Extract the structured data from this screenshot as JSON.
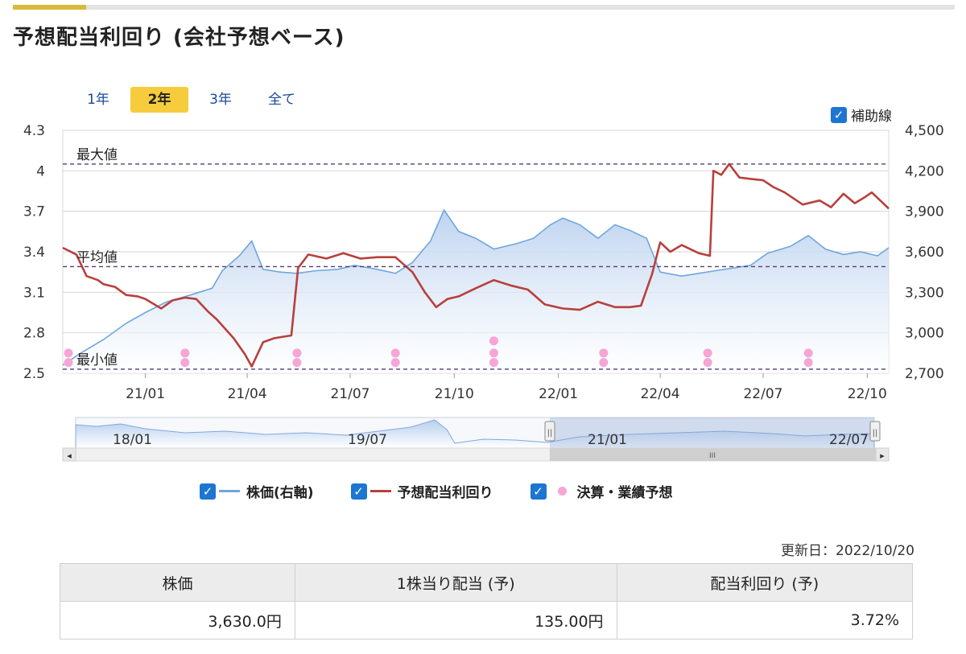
{
  "title": "予想配当利回り (会社予想ベース)",
  "range_tabs": [
    {
      "label": "1年",
      "active": false
    },
    {
      "label": "2年",
      "active": true
    },
    {
      "label": "3年",
      "active": false
    },
    {
      "label": "全て",
      "active": false
    }
  ],
  "aux_lines": {
    "label": "補助線",
    "checked": true
  },
  "colors": {
    "price": "#6ea6de",
    "price_fill": "#c9dbf2",
    "yield": "#b8403c",
    "events": "#f7a5d5",
    "refline": "#5b3a78",
    "tab_active": "#f6cc3c",
    "checkbox": "#1d76d2"
  },
  "chart_data": {
    "type": "line",
    "left_axis": {
      "ylim": [
        2.5,
        4.3
      ],
      "ticks": [
        "2.5",
        "2.8",
        "3.1",
        "3.4",
        "3.7",
        "4",
        "4.3"
      ]
    },
    "right_axis": {
      "ylim": [
        2700,
        4500
      ],
      "ticks": [
        "2,700",
        "3,000",
        "3,300",
        "3,600",
        "3,900",
        "4,200",
        "4,500"
      ]
    },
    "x_ticks": [
      "21/01",
      "21/04",
      "21/07",
      "21/10",
      "22/01",
      "22/04",
      "22/07",
      "22/10"
    ],
    "x_range": [
      "2020-10-20",
      "2022-10-20"
    ],
    "reference_lines": [
      {
        "label": "最大値",
        "value": 4.05
      },
      {
        "label": "平均値",
        "value": 3.29
      },
      {
        "label": "最小値",
        "value": 2.53
      }
    ],
    "series": [
      {
        "name": "株価(右軸)",
        "axis": "right",
        "points": [
          [
            "2020-10-20",
            2760
          ],
          [
            "2020-11-05",
            2850
          ],
          [
            "2020-11-25",
            2950
          ],
          [
            "2020-12-15",
            3070
          ],
          [
            "2021-01-01",
            3150
          ],
          [
            "2021-01-20",
            3230
          ],
          [
            "2021-02-10",
            3280
          ],
          [
            "2021-03-01",
            3330
          ],
          [
            "2021-03-10",
            3460
          ],
          [
            "2021-03-25",
            3570
          ],
          [
            "2021-04-05",
            3680
          ],
          [
            "2021-04-15",
            3470
          ],
          [
            "2021-04-30",
            3450
          ],
          [
            "2021-05-15",
            3440
          ],
          [
            "2021-06-01",
            3460
          ],
          [
            "2021-06-20",
            3470
          ],
          [
            "2021-07-05",
            3500
          ],
          [
            "2021-07-25",
            3470
          ],
          [
            "2021-08-10",
            3440
          ],
          [
            "2021-08-25",
            3520
          ],
          [
            "2021-09-10",
            3680
          ],
          [
            "2021-09-22",
            3910
          ],
          [
            "2021-10-05",
            3750
          ],
          [
            "2021-10-20",
            3700
          ],
          [
            "2021-11-05",
            3620
          ],
          [
            "2021-11-25",
            3660
          ],
          [
            "2021-12-10",
            3700
          ],
          [
            "2021-12-25",
            3800
          ],
          [
            "2022-01-05",
            3850
          ],
          [
            "2022-01-20",
            3800
          ],
          [
            "2022-02-05",
            3700
          ],
          [
            "2022-02-20",
            3800
          ],
          [
            "2022-03-05",
            3760
          ],
          [
            "2022-03-20",
            3700
          ],
          [
            "2022-04-01",
            3450
          ],
          [
            "2022-04-20",
            3420
          ],
          [
            "2022-05-05",
            3440
          ],
          [
            "2022-05-20",
            3460
          ],
          [
            "2022-06-05",
            3480
          ],
          [
            "2022-06-20",
            3500
          ],
          [
            "2022-07-05",
            3590
          ],
          [
            "2022-07-25",
            3640
          ],
          [
            "2022-08-10",
            3720
          ],
          [
            "2022-08-25",
            3620
          ],
          [
            "2022-09-10",
            3580
          ],
          [
            "2022-09-25",
            3600
          ],
          [
            "2022-10-10",
            3570
          ],
          [
            "2022-10-20",
            3630
          ]
        ]
      },
      {
        "name": "予想配当利回り",
        "axis": "left",
        "points": [
          [
            "2020-10-20",
            3.43
          ],
          [
            "2020-11-01",
            3.38
          ],
          [
            "2020-11-10",
            3.22
          ],
          [
            "2020-11-20",
            3.19
          ],
          [
            "2020-11-25",
            3.16
          ],
          [
            "2020-12-05",
            3.14
          ],
          [
            "2020-12-15",
            3.08
          ],
          [
            "2020-12-25",
            3.07
          ],
          [
            "2021-01-01",
            3.05
          ],
          [
            "2021-01-15",
            2.98
          ],
          [
            "2021-01-25",
            3.04
          ],
          [
            "2021-02-05",
            3.06
          ],
          [
            "2021-02-15",
            3.05
          ],
          [
            "2021-02-25",
            2.96
          ],
          [
            "2021-03-05",
            2.9
          ],
          [
            "2021-03-20",
            2.76
          ],
          [
            "2021-03-30",
            2.64
          ],
          [
            "2021-04-05",
            2.55
          ],
          [
            "2021-04-15",
            2.73
          ],
          [
            "2021-04-25",
            2.76
          ],
          [
            "2021-05-10",
            2.78
          ],
          [
            "2021-05-16",
            3.28
          ],
          [
            "2021-05-25",
            3.38
          ],
          [
            "2021-06-10",
            3.35
          ],
          [
            "2021-06-25",
            3.39
          ],
          [
            "2021-07-10",
            3.35
          ],
          [
            "2021-07-25",
            3.36
          ],
          [
            "2021-08-10",
            3.36
          ],
          [
            "2021-08-25",
            3.25
          ],
          [
            "2021-09-05",
            3.1
          ],
          [
            "2021-09-15",
            2.99
          ],
          [
            "2021-09-25",
            3.05
          ],
          [
            "2021-10-05",
            3.07
          ],
          [
            "2021-10-20",
            3.13
          ],
          [
            "2021-11-05",
            3.19
          ],
          [
            "2021-11-20",
            3.15
          ],
          [
            "2021-12-05",
            3.12
          ],
          [
            "2021-12-20",
            3.01
          ],
          [
            "2022-01-05",
            2.98
          ],
          [
            "2022-01-20",
            2.97
          ],
          [
            "2022-02-05",
            3.03
          ],
          [
            "2022-02-20",
            2.99
          ],
          [
            "2022-03-05",
            2.99
          ],
          [
            "2022-03-15",
            3.0
          ],
          [
            "2022-03-25",
            3.24
          ],
          [
            "2022-04-01",
            3.47
          ],
          [
            "2022-04-10",
            3.4
          ],
          [
            "2022-04-20",
            3.45
          ],
          [
            "2022-05-05",
            3.39
          ],
          [
            "2022-05-15",
            3.37
          ],
          [
            "2022-05-18",
            4.0
          ],
          [
            "2022-05-25",
            3.97
          ],
          [
            "2022-06-01",
            4.05
          ],
          [
            "2022-06-10",
            3.95
          ],
          [
            "2022-06-20",
            3.94
          ],
          [
            "2022-07-01",
            3.93
          ],
          [
            "2022-07-10",
            3.88
          ],
          [
            "2022-07-20",
            3.84
          ],
          [
            "2022-08-05",
            3.75
          ],
          [
            "2022-08-20",
            3.78
          ],
          [
            "2022-08-30",
            3.73
          ],
          [
            "2022-09-10",
            3.83
          ],
          [
            "2022-09-20",
            3.76
          ],
          [
            "2022-09-28",
            3.8
          ],
          [
            "2022-10-05",
            3.84
          ],
          [
            "2022-10-15",
            3.76
          ],
          [
            "2022-10-20",
            3.72
          ]
        ]
      }
    ],
    "event_markers": {
      "name": "決算・業績予想",
      "dates": [
        "2020-10-25",
        "2021-02-05",
        "2021-05-15",
        "2021-08-10",
        "2021-11-05",
        "2022-02-10",
        "2022-05-13",
        "2022-08-10"
      ],
      "stacked": [
        [
          2.65,
          2.58
        ],
        [
          2.65,
          2.58
        ],
        [
          2.65,
          2.58
        ],
        [
          2.65,
          2.58
        ],
        [
          2.74,
          2.65,
          2.58
        ],
        [
          2.65,
          2.58
        ],
        [
          2.65,
          2.58
        ],
        [
          2.65,
          2.58
        ]
      ]
    }
  },
  "navigator": {
    "labels": [
      "18/01",
      "19/07",
      "21/01",
      "22/07"
    ],
    "handle_glyph": "||",
    "scroll_left": "◂",
    "scroll_right": "▸",
    "scroll_thumb_glyph": "III"
  },
  "legend": [
    {
      "label": "株価(右軸)",
      "kind": "line",
      "color": "#6ea6de"
    },
    {
      "label": "予想配当利回り",
      "kind": "line",
      "color": "#b8403c"
    },
    {
      "label": "決算・業績予想",
      "kind": "dot",
      "color": "#f7a5d5"
    }
  ],
  "checkmark": "✓",
  "updated": "更新日：2022/10/20",
  "summary": {
    "headers": [
      "株価",
      "1株当り配当 (予)",
      "配当利回り (予)"
    ],
    "values": [
      "3,630.0円",
      "135.00円",
      "3.72%"
    ]
  }
}
